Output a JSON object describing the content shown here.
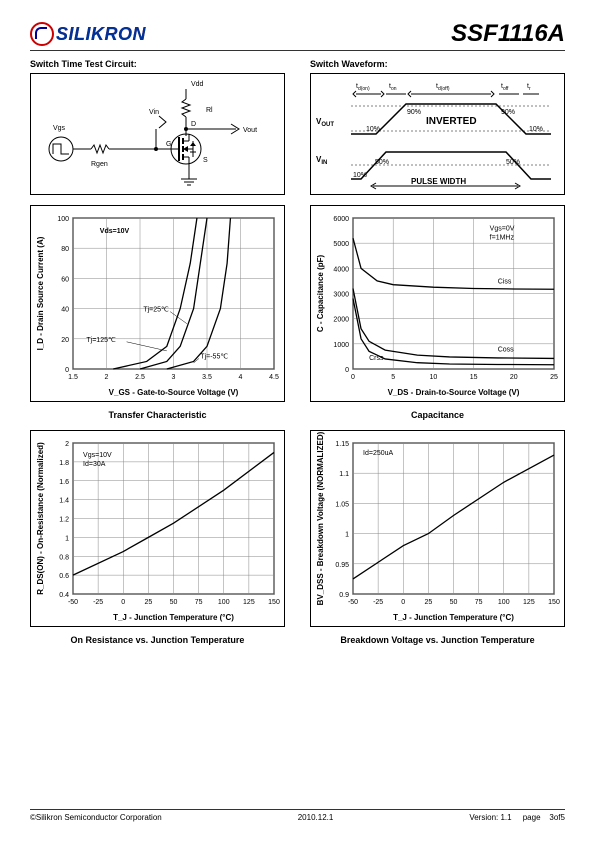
{
  "header": {
    "logo_text": "SILIKRON",
    "part_number": "SSF1116A"
  },
  "panels": {
    "circuit": {
      "title": "Switch Time Test Circuit:",
      "labels": {
        "vdd": "Vdd",
        "rl": "Rl",
        "vin": "Vin",
        "d": "D",
        "vout": "Vout",
        "vgs": "Vgs",
        "rgen": "Rgen",
        "g": "G",
        "s": "S"
      }
    },
    "waveform": {
      "title": "Switch Waveform:",
      "labels": {
        "tdon": "t_d(on)",
        "ton": "t_on",
        "tdoff": "t_d(off)",
        "toff": "t_off",
        "tr": "t_r",
        "vout": "V_OUT",
        "inverted": "INVERTED",
        "vin": "V_IN",
        "pulse": "PULSE WIDTH",
        "p90": "90%",
        "p50": "50%",
        "p10": "10%"
      }
    },
    "transfer": {
      "caption": "Transfer Characteristic",
      "type": "line",
      "xlabel": "V_GS - Gate-to-Source Voltage (V)",
      "ylabel": "I_D - Drain Source Current (A)",
      "xlim": [
        1.5,
        4.5
      ],
      "xtick_step": 0.5,
      "ylim": [
        0,
        100
      ],
      "ytick_step": 20,
      "annotations": {
        "vds": "Vds=10V",
        "t25": "Tj=25℃",
        "t125": "Tj=125℃",
        "tm55": "Tj=-55℃"
      },
      "series": {
        "t-55": {
          "points": [
            [
              2.9,
              0
            ],
            [
              3.3,
              5
            ],
            [
              3.5,
              15
            ],
            [
              3.7,
              40
            ],
            [
              3.8,
              70
            ],
            [
              3.85,
              100
            ]
          ],
          "color": "#000000"
        },
        "t25": {
          "points": [
            [
              2.5,
              0
            ],
            [
              2.9,
              5
            ],
            [
              3.1,
              15
            ],
            [
              3.3,
              40
            ],
            [
              3.4,
              70
            ],
            [
              3.5,
              100
            ]
          ],
          "color": "#000000"
        },
        "t125": {
          "points": [
            [
              2.1,
              0
            ],
            [
              2.6,
              5
            ],
            [
              2.9,
              15
            ],
            [
              3.1,
              40
            ],
            [
              3.25,
              70
            ],
            [
              3.35,
              100
            ]
          ],
          "color": "#000000"
        }
      },
      "grid_color": "#888888",
      "background_color": "#ffffff",
      "label_fontsize": 8,
      "tick_fontsize": 7
    },
    "capacitance": {
      "caption": "Capacitance",
      "type": "line",
      "xlabel": "V_DS - Drain-to-Source Voltage (V)",
      "ylabel": "C - Capacitance (pF)",
      "xlim": [
        0,
        25
      ],
      "xtick_step": 5,
      "ylim": [
        0,
        6000
      ],
      "ytick_step": 1000,
      "annotations": {
        "cond": "Vgs=0V\nf=1MHz",
        "ciss": "Ciss",
        "coss": "Coss",
        "crss": "Crss"
      },
      "series": {
        "ciss": {
          "start": 5200,
          "points": [
            [
              0,
              5200
            ],
            [
              1,
              4000
            ],
            [
              3,
              3500
            ],
            [
              5,
              3350
            ],
            [
              10,
              3250
            ],
            [
              15,
              3200
            ],
            [
              20,
              3180
            ],
            [
              25,
              3170
            ]
          ],
          "color": "#000000"
        },
        "coss": {
          "start": 3200,
          "points": [
            [
              0,
              3200
            ],
            [
              1,
              1600
            ],
            [
              2,
              1100
            ],
            [
              4,
              750
            ],
            [
              8,
              550
            ],
            [
              12,
              480
            ],
            [
              18,
              440
            ],
            [
              25,
              420
            ]
          ],
          "color": "#000000"
        },
        "crss": {
          "start": 2800,
          "points": [
            [
              0,
              2800
            ],
            [
              1,
              1200
            ],
            [
              2,
              700
            ],
            [
              4,
              400
            ],
            [
              8,
              250
            ],
            [
              12,
              200
            ],
            [
              18,
              180
            ],
            [
              25,
              170
            ]
          ],
          "color": "#000000"
        }
      },
      "grid_color": "#888888",
      "background_color": "#ffffff"
    },
    "rdson": {
      "caption": "On Resistance vs. Junction Temperature",
      "type": "line",
      "xlabel": "T_J - Junction Temperature (°C)",
      "ylabel": "R_DS(ON) - On-Resistance (Normalized)",
      "xlim": [
        -50,
        150
      ],
      "xtick_step": 25,
      "ylim": [
        0.4,
        2.0
      ],
      "ytick_step": 0.2,
      "annotations": {
        "cond": "Vgs=10V\nId=30A"
      },
      "series": {
        "main": {
          "points": [
            [
              -50,
              0.6
            ],
            [
              0,
              0.85
            ],
            [
              25,
              1.0
            ],
            [
              50,
              1.15
            ],
            [
              100,
              1.5
            ],
            [
              150,
              1.9
            ]
          ],
          "color": "#000000"
        }
      },
      "grid_color": "#888888"
    },
    "bvdss": {
      "caption": "Breakdown Voltage vs. Junction Temperature",
      "type": "line",
      "xlabel": "T_J - Junction Temperature (°C)",
      "ylabel": "BV_DSS - Breakdown Voltage (NORMALIZED)",
      "xlim": [
        -50,
        150
      ],
      "xtick_step": 25,
      "ylim": [
        0.9,
        1.15
      ],
      "yticks": [
        0.9,
        0.95,
        1,
        1.05,
        1.1,
        1.15
      ],
      "annotations": {
        "cond": "Id=250uA"
      },
      "series": {
        "main": {
          "points": [
            [
              -50,
              0.925
            ],
            [
              0,
              0.98
            ],
            [
              25,
              1.0
            ],
            [
              50,
              1.03
            ],
            [
              100,
              1.085
            ],
            [
              150,
              1.13
            ]
          ],
          "color": "#000000"
        }
      },
      "grid_color": "#888888"
    }
  },
  "footer": {
    "company": "©Silikron Semiconductor Corporation",
    "date": "2010.12.1",
    "version_label": "Version:",
    "version": "1.1",
    "page_label": "page",
    "page": "3of5"
  }
}
